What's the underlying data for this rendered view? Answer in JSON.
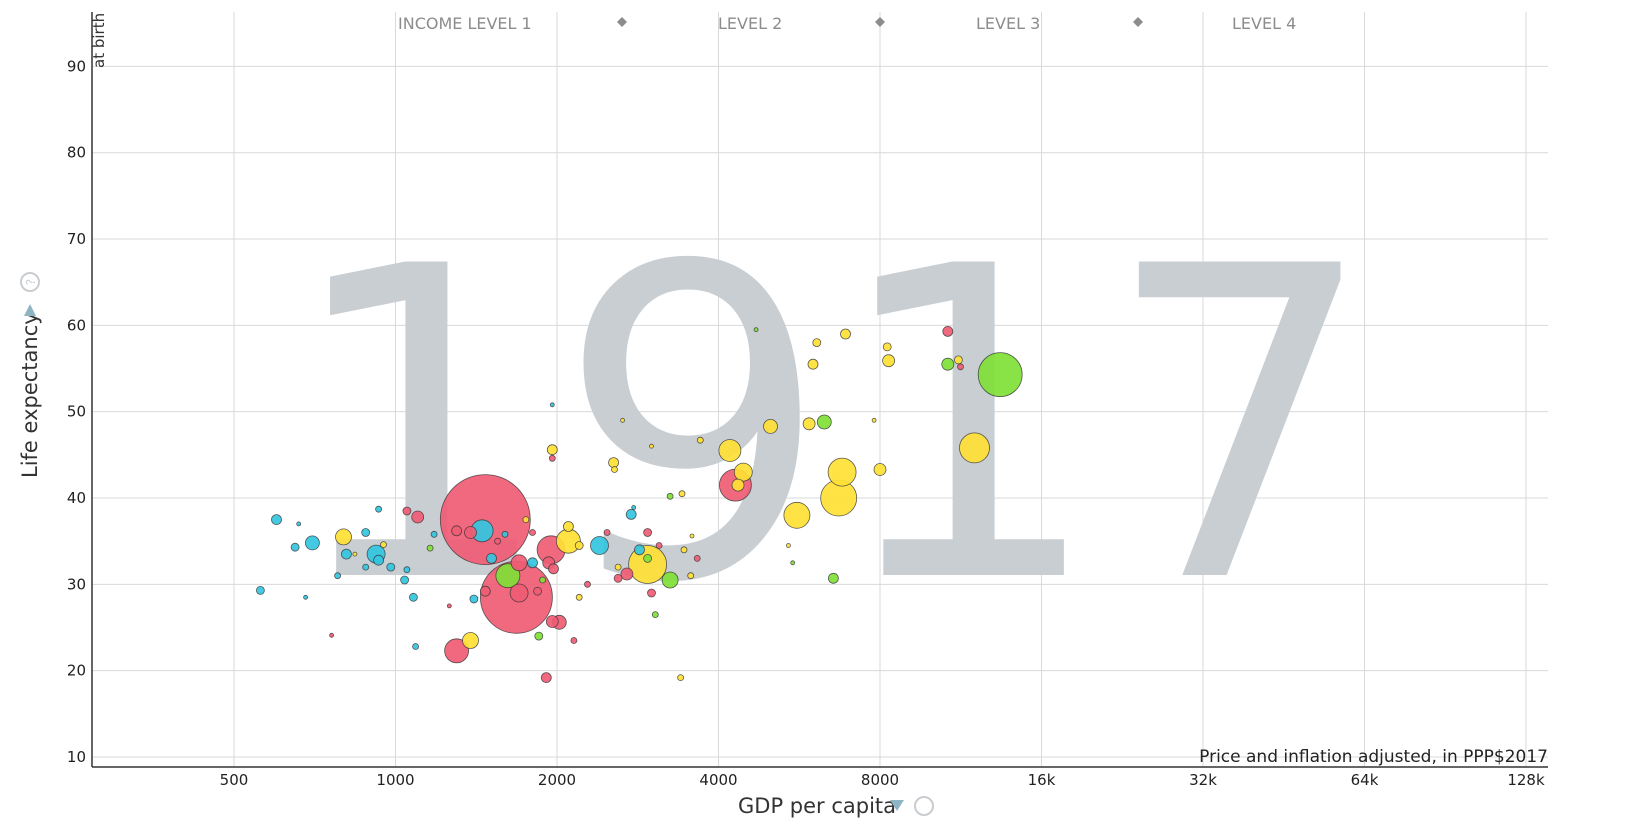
{
  "year_label": "1917",
  "y_axis": {
    "title": "Life expectancy",
    "unit_label": "at birth",
    "dropdown_icon": "triangle-down-icon",
    "help_icon": "question-circle-icon"
  },
  "x_axis": {
    "title": "GDP per capita",
    "note": "Price and inflation adjusted, in PPP$2017",
    "dropdown_icon": "triangle-down-icon",
    "help_icon": "question-circle-icon"
  },
  "income_levels": [
    "INCOME LEVEL 1",
    "LEVEL 2",
    "LEVEL 3",
    "LEVEL 4"
  ],
  "colors": {
    "cyan": "#33c5df",
    "red": "#ef5c74",
    "green": "#7fe036",
    "yellow": "#ffe135",
    "year": "#c9ced3",
    "grid": "#d9d9d9"
  },
  "chart_data": {
    "type": "scatter",
    "xlabel": "GDP per capita",
    "ylabel": "Life expectancy",
    "x_scale": "log",
    "xlim": [
      250,
      130000
    ],
    "ylim": [
      10,
      95
    ],
    "x_ticks": [
      {
        "v": 500,
        "label": "500"
      },
      {
        "v": 1000,
        "label": "1000"
      },
      {
        "v": 2000,
        "label": "2000"
      },
      {
        "v": 4000,
        "label": "4000"
      },
      {
        "v": 8000,
        "label": "8000"
      },
      {
        "v": 16000,
        "label": "16k"
      },
      {
        "v": 32000,
        "label": "32k"
      },
      {
        "v": 64000,
        "label": "64k"
      },
      {
        "v": 128000,
        "label": "128k"
      }
    ],
    "y_ticks": [
      10,
      20,
      30,
      40,
      50,
      60,
      70,
      80,
      90
    ],
    "grid": true,
    "points": [
      {
        "x": 1470,
        "y": 37.5,
        "r": 45,
        "c": "red"
      },
      {
        "x": 1680,
        "y": 28.5,
        "r": 36,
        "c": "red"
      },
      {
        "x": 1450,
        "y": 36.2,
        "r": 11,
        "c": "cyan"
      },
      {
        "x": 1620,
        "y": 31.0,
        "r": 12,
        "c": "green"
      },
      {
        "x": 1700,
        "y": 29.0,
        "r": 9,
        "c": "red"
      },
      {
        "x": 1700,
        "y": 32.5,
        "r": 8,
        "c": "red"
      },
      {
        "x": 1300,
        "y": 22.3,
        "r": 12,
        "c": "red"
      },
      {
        "x": 1380,
        "y": 23.5,
        "r": 8,
        "c": "yellow"
      },
      {
        "x": 1950,
        "y": 34.0,
        "r": 14,
        "c": "red"
      },
      {
        "x": 2100,
        "y": 35.0,
        "r": 12,
        "c": "yellow"
      },
      {
        "x": 2400,
        "y": 34.5,
        "r": 9,
        "c": "cyan"
      },
      {
        "x": 2950,
        "y": 32.3,
        "r": 19,
        "c": "yellow"
      },
      {
        "x": 3250,
        "y": 30.5,
        "r": 8,
        "c": "green"
      },
      {
        "x": 4300,
        "y": 41.5,
        "r": 16,
        "c": "red"
      },
      {
        "x": 4200,
        "y": 45.5,
        "r": 11,
        "c": "yellow"
      },
      {
        "x": 4450,
        "y": 43.0,
        "r": 9,
        "c": "yellow"
      },
      {
        "x": 4350,
        "y": 41.5,
        "r": 6,
        "c": "yellow"
      },
      {
        "x": 5000,
        "y": 48.3,
        "r": 7,
        "c": "yellow"
      },
      {
        "x": 5600,
        "y": 38.0,
        "r": 13,
        "c": "yellow"
      },
      {
        "x": 6800,
        "y": 43.0,
        "r": 14,
        "c": "yellow"
      },
      {
        "x": 6700,
        "y": 40.0,
        "r": 18,
        "c": "yellow"
      },
      {
        "x": 6300,
        "y": 48.8,
        "r": 7,
        "c": "green"
      },
      {
        "x": 5900,
        "y": 48.6,
        "r": 6,
        "c": "yellow"
      },
      {
        "x": 6900,
        "y": 59.0,
        "r": 5,
        "c": "yellow"
      },
      {
        "x": 8000,
        "y": 43.3,
        "r": 6,
        "c": "yellow"
      },
      {
        "x": 8300,
        "y": 55.9,
        "r": 6,
        "c": "yellow"
      },
      {
        "x": 8250,
        "y": 57.5,
        "r": 4,
        "c": "yellow"
      },
      {
        "x": 6000,
        "y": 55.5,
        "r": 5,
        "c": "yellow"
      },
      {
        "x": 6100,
        "y": 58.0,
        "r": 4,
        "c": "yellow"
      },
      {
        "x": 6550,
        "y": 30.7,
        "r": 5,
        "c": "green"
      },
      {
        "x": 10700,
        "y": 59.3,
        "r": 5,
        "c": "red"
      },
      {
        "x": 10700,
        "y": 55.5,
        "r": 6,
        "c": "green"
      },
      {
        "x": 11200,
        "y": 56.0,
        "r": 4,
        "c": "yellow"
      },
      {
        "x": 11300,
        "y": 55.2,
        "r": 3,
        "c": "red"
      },
      {
        "x": 13400,
        "y": 54.3,
        "r": 22,
        "c": "green"
      },
      {
        "x": 12000,
        "y": 45.8,
        "r": 15,
        "c": "yellow"
      },
      {
        "x": 600,
        "y": 37.5,
        "r": 5,
        "c": "cyan"
      },
      {
        "x": 700,
        "y": 34.8,
        "r": 7,
        "c": "cyan"
      },
      {
        "x": 650,
        "y": 34.3,
        "r": 4,
        "c": "cyan"
      },
      {
        "x": 560,
        "y": 29.3,
        "r": 4,
        "c": "cyan"
      },
      {
        "x": 800,
        "y": 35.5,
        "r": 8,
        "c": "yellow"
      },
      {
        "x": 810,
        "y": 33.5,
        "r": 5,
        "c": "cyan"
      },
      {
        "x": 880,
        "y": 36.0,
        "r": 4,
        "c": "cyan"
      },
      {
        "x": 920,
        "y": 33.5,
        "r": 9,
        "c": "cyan"
      },
      {
        "x": 930,
        "y": 32.8,
        "r": 5,
        "c": "cyan"
      },
      {
        "x": 980,
        "y": 32.0,
        "r": 4,
        "c": "cyan"
      },
      {
        "x": 1040,
        "y": 30.5,
        "r": 4,
        "c": "cyan"
      },
      {
        "x": 1080,
        "y": 28.5,
        "r": 4,
        "c": "cyan"
      },
      {
        "x": 1100,
        "y": 37.8,
        "r": 6,
        "c": "red"
      },
      {
        "x": 1050,
        "y": 38.5,
        "r": 4,
        "c": "red"
      },
      {
        "x": 930,
        "y": 38.7,
        "r": 3,
        "c": "cyan"
      },
      {
        "x": 1090,
        "y": 22.8,
        "r": 3,
        "c": "cyan"
      },
      {
        "x": 1380,
        "y": 36.0,
        "r": 6,
        "c": "red"
      },
      {
        "x": 1300,
        "y": 36.2,
        "r": 5,
        "c": "red"
      },
      {
        "x": 1510,
        "y": 33.0,
        "r": 5,
        "c": "cyan"
      },
      {
        "x": 1470,
        "y": 29.2,
        "r": 5,
        "c": "red"
      },
      {
        "x": 1400,
        "y": 28.3,
        "r": 4,
        "c": "cyan"
      },
      {
        "x": 1800,
        "y": 32.5,
        "r": 5,
        "c": "cyan"
      },
      {
        "x": 1840,
        "y": 29.2,
        "r": 4,
        "c": "red"
      },
      {
        "x": 1930,
        "y": 32.5,
        "r": 6,
        "c": "red"
      },
      {
        "x": 1970,
        "y": 31.8,
        "r": 5,
        "c": "red"
      },
      {
        "x": 1960,
        "y": 25.7,
        "r": 6,
        "c": "red"
      },
      {
        "x": 2020,
        "y": 25.6,
        "r": 7,
        "c": "red"
      },
      {
        "x": 1910,
        "y": 19.2,
        "r": 5,
        "c": "red"
      },
      {
        "x": 1960,
        "y": 45.6,
        "r": 5,
        "c": "yellow"
      },
      {
        "x": 1960,
        "y": 44.6,
        "r": 3,
        "c": "red"
      },
      {
        "x": 2100,
        "y": 36.7,
        "r": 5,
        "c": "yellow"
      },
      {
        "x": 2200,
        "y": 34.5,
        "r": 4,
        "c": "yellow"
      },
      {
        "x": 2550,
        "y": 44.1,
        "r": 5,
        "c": "yellow"
      },
      {
        "x": 2560,
        "y": 43.3,
        "r": 3,
        "c": "yellow"
      },
      {
        "x": 2700,
        "y": 31.2,
        "r": 6,
        "c": "red"
      },
      {
        "x": 2600,
        "y": 30.7,
        "r": 4,
        "c": "red"
      },
      {
        "x": 2750,
        "y": 38.1,
        "r": 5,
        "c": "cyan"
      },
      {
        "x": 2850,
        "y": 34.0,
        "r": 5,
        "c": "cyan"
      },
      {
        "x": 2950,
        "y": 36.0,
        "r": 4,
        "c": "red"
      },
      {
        "x": 2950,
        "y": 33.0,
        "r": 4,
        "c": "green"
      },
      {
        "x": 3000,
        "y": 29.0,
        "r": 4,
        "c": "red"
      },
      {
        "x": 3100,
        "y": 34.5,
        "r": 3,
        "c": "red"
      },
      {
        "x": 3450,
        "y": 34.0,
        "r": 3,
        "c": "yellow"
      },
      {
        "x": 3400,
        "y": 19.2,
        "r": 3,
        "c": "yellow"
      },
      {
        "x": 3700,
        "y": 46.7,
        "r": 3,
        "c": "yellow"
      },
      {
        "x": 3420,
        "y": 40.5,
        "r": 3,
        "c": "yellow"
      },
      {
        "x": 3250,
        "y": 40.2,
        "r": 3,
        "c": "green"
      },
      {
        "x": 1850,
        "y": 24.0,
        "r": 4,
        "c": "green"
      },
      {
        "x": 1550,
        "y": 35.0,
        "r": 3,
        "c": "red"
      },
      {
        "x": 2150,
        "y": 23.5,
        "r": 3,
        "c": "red"
      },
      {
        "x": 2200,
        "y": 28.5,
        "r": 3,
        "c": "yellow"
      },
      {
        "x": 3050,
        "y": 26.5,
        "r": 3,
        "c": "green"
      },
      {
        "x": 1050,
        "y": 31.7,
        "r": 3,
        "c": "cyan"
      },
      {
        "x": 880,
        "y": 32.0,
        "r": 3,
        "c": "cyan"
      },
      {
        "x": 780,
        "y": 31.0,
        "r": 3,
        "c": "cyan"
      },
      {
        "x": 680,
        "y": 28.5,
        "r": 2,
        "c": "cyan"
      },
      {
        "x": 760,
        "y": 24.1,
        "r": 2,
        "c": "red"
      },
      {
        "x": 660,
        "y": 37.0,
        "r": 2,
        "c": "cyan"
      },
      {
        "x": 1260,
        "y": 27.5,
        "r": 2,
        "c": "red"
      },
      {
        "x": 2780,
        "y": 38.9,
        "r": 2,
        "c": "cyan"
      },
      {
        "x": 3570,
        "y": 35.6,
        "r": 2,
        "c": "yellow"
      },
      {
        "x": 4700,
        "y": 59.5,
        "r": 2,
        "c": "green"
      },
      {
        "x": 1960,
        "y": 50.8,
        "r": 2,
        "c": "cyan"
      },
      {
        "x": 2650,
        "y": 49.0,
        "r": 2,
        "c": "yellow"
      },
      {
        "x": 7800,
        "y": 49.0,
        "r": 2,
        "c": "yellow"
      },
      {
        "x": 5400,
        "y": 34.5,
        "r": 2,
        "c": "yellow"
      },
      {
        "x": 5500,
        "y": 32.5,
        "r": 2,
        "c": "green"
      },
      {
        "x": 3000,
        "y": 46.0,
        "r": 2,
        "c": "yellow"
      },
      {
        "x": 1800,
        "y": 36.0,
        "r": 3,
        "c": "red"
      },
      {
        "x": 1600,
        "y": 35.8,
        "r": 3,
        "c": "cyan"
      },
      {
        "x": 1750,
        "y": 37.5,
        "r": 3,
        "c": "yellow"
      },
      {
        "x": 1880,
        "y": 30.5,
        "r": 3,
        "c": "green"
      },
      {
        "x": 2280,
        "y": 30.0,
        "r": 3,
        "c": "red"
      },
      {
        "x": 1160,
        "y": 34.2,
        "r": 3,
        "c": "green"
      },
      {
        "x": 1180,
        "y": 35.8,
        "r": 3,
        "c": "cyan"
      },
      {
        "x": 950,
        "y": 34.6,
        "r": 3,
        "c": "yellow"
      },
      {
        "x": 840,
        "y": 33.5,
        "r": 2,
        "c": "yellow"
      },
      {
        "x": 2480,
        "y": 36.0,
        "r": 3,
        "c": "red"
      },
      {
        "x": 2600,
        "y": 32.0,
        "r": 3,
        "c": "yellow"
      },
      {
        "x": 3550,
        "y": 31.0,
        "r": 3,
        "c": "yellow"
      },
      {
        "x": 3650,
        "y": 33.0,
        "r": 3,
        "c": "red"
      }
    ]
  }
}
